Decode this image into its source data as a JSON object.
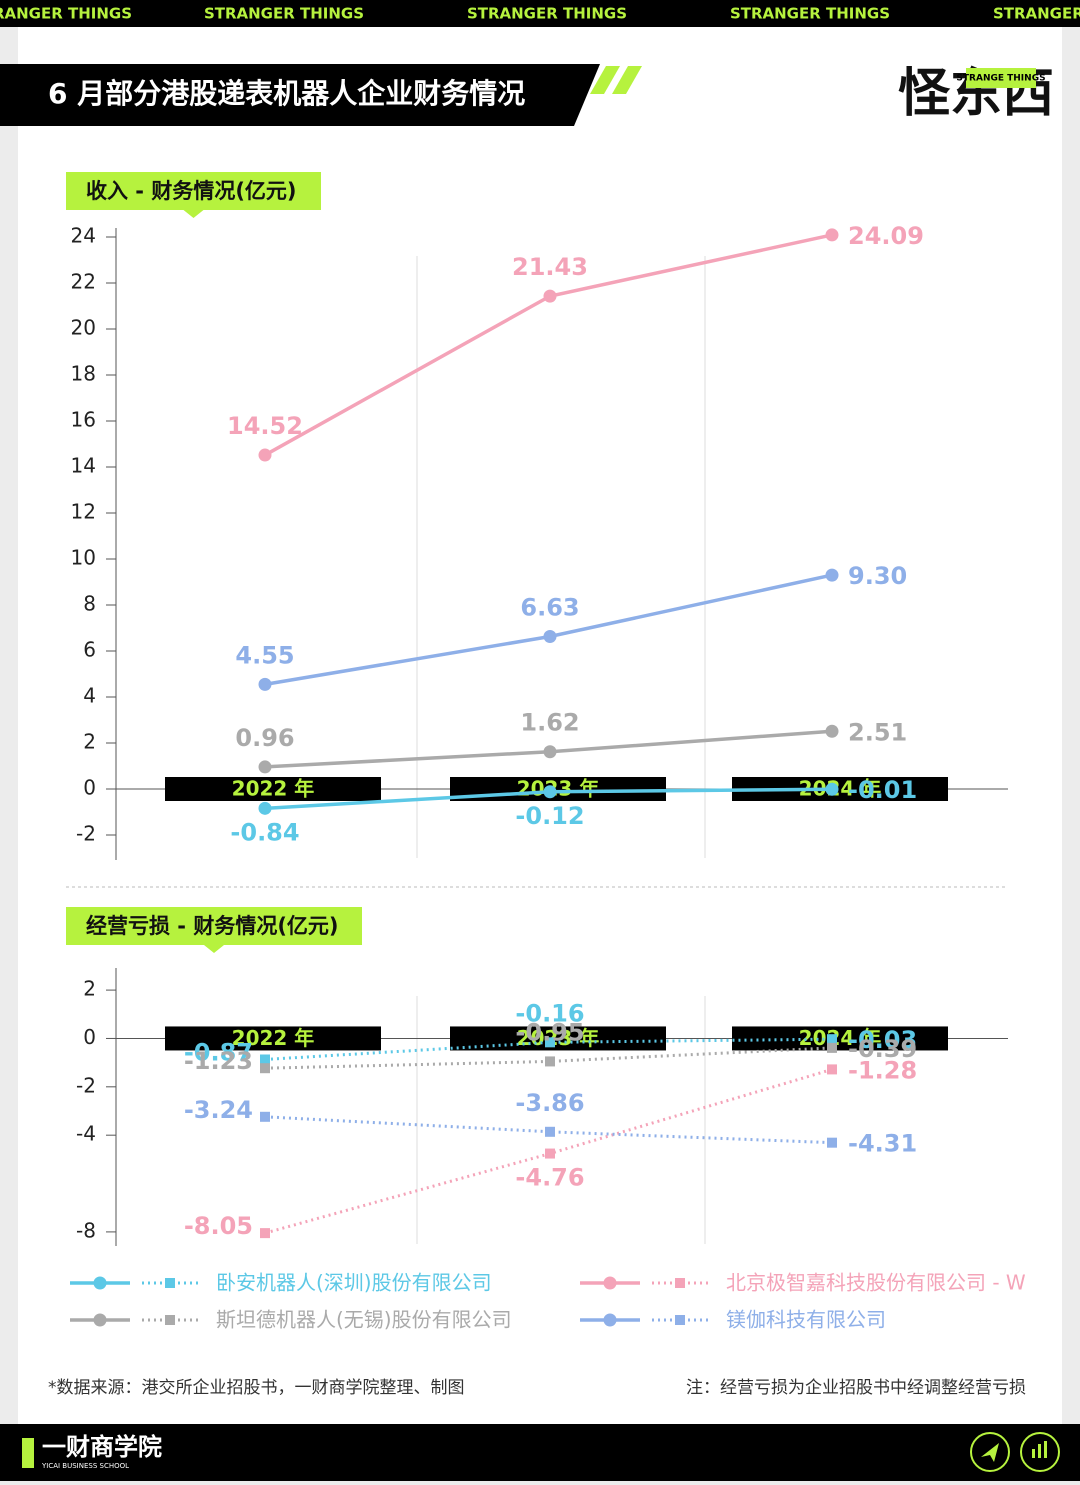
{
  "banner_text": "STRANGER THINGS",
  "header": {
    "title": "6 月部分港股递表机器人企业财务情况",
    "logo": "怪东西",
    "logo_tag": "STRANGE THINGS"
  },
  "chart_data": [
    {
      "type": "line",
      "title": "收入 - 财务情况(亿元)",
      "categories": [
        "2022 年",
        "2023 年",
        "2024 年"
      ],
      "ylim": [
        -3,
        24
      ],
      "yticks": [
        -2,
        0,
        2,
        4,
        6,
        8,
        10,
        12,
        14,
        16,
        18,
        20,
        22,
        24
      ],
      "series": [
        {
          "name": "卧安机器人(深圳)股份有限公司",
          "color": "#5cc8e6",
          "values": [
            -0.84,
            -0.12,
            -0.01
          ]
        },
        {
          "name": "北京极智嘉科技股份有限公司 - W",
          "color": "#f4a3b8",
          "values": [
            14.52,
            21.43,
            24.09
          ]
        },
        {
          "name": "斯坦德机器人(无锡)股份有限公司",
          "color": "#aaaaaa",
          "values": [
            0.96,
            1.62,
            2.51
          ]
        },
        {
          "name": "镁伽科技有限公司",
          "color": "#8eafe8",
          "values": [
            4.55,
            6.63,
            9.3
          ],
          "value_labels": [
            "4.55",
            "6.63",
            "9.30"
          ]
        }
      ]
    },
    {
      "type": "dotted-line",
      "title": "经营亏损 - 财务情况(亿元)",
      "categories": [
        "2022 年",
        "2023 年",
        "2024 年"
      ],
      "ylim": [
        -8.5,
        2.5
      ],
      "yticks": [
        -8,
        -4,
        -2,
        0,
        2
      ],
      "series": [
        {
          "color": "#5cc8e6",
          "values": [
            -0.87,
            -0.16,
            -0.03
          ]
        },
        {
          "color": "#f4a3b8",
          "values": [
            -8.05,
            -4.76,
            -1.28
          ]
        },
        {
          "color": "#aaaaaa",
          "values": [
            -1.23,
            -0.95,
            -0.39
          ]
        },
        {
          "color": "#8eafe8",
          "values": [
            -3.24,
            -3.86,
            -4.31
          ]
        }
      ]
    }
  ],
  "footer": {
    "source": "*数据来源：港交所企业招股书，一财商学院整理、制图",
    "note": "注：经营亏损为企业招股书中经调整经营亏损",
    "brand": "一财商学院",
    "brand_en": "YICAI BUSINESS SCHOOL"
  }
}
